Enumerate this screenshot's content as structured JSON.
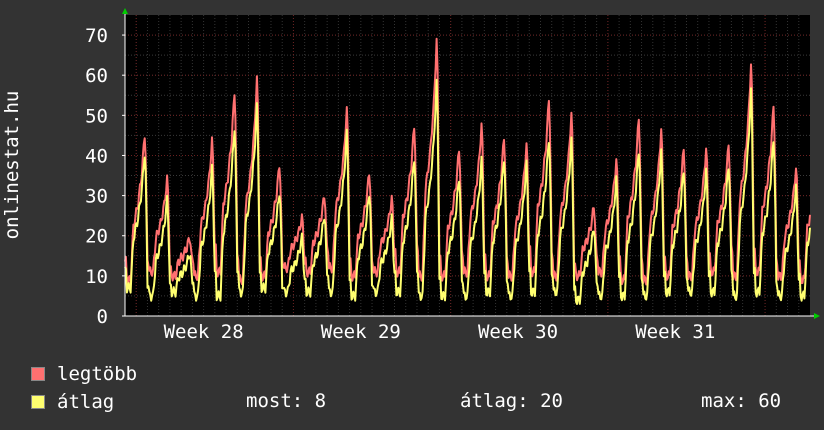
{
  "chart_data": {
    "type": "line",
    "ylabel": "onlinestat.hu",
    "ylim": [
      0,
      75
    ],
    "y_ticks": [
      0,
      10,
      20,
      30,
      40,
      50,
      60,
      70
    ],
    "x_ticks": [
      {
        "label": "Week 28",
        "day": 3.5
      },
      {
        "label": "Week 29",
        "day": 10.5
      },
      {
        "label": "Week 30",
        "day": 17.5
      },
      {
        "label": "Week 31",
        "day": 24.5
      }
    ],
    "x_range_days": [
      0,
      30.5
    ],
    "grid": true,
    "series": [
      {
        "name": "legtöbb",
        "color": "#ff7070",
        "daily_min": [
          9,
          11,
          10,
          10,
          11,
          9,
          10,
          12,
          11,
          12,
          10,
          11,
          11,
          10,
          10,
          11,
          10,
          10,
          11,
          10,
          10,
          11,
          9,
          9,
          10,
          10,
          11,
          10,
          11,
          10,
          9
        ],
        "daily_max": [
          47,
          35,
          20,
          45,
          58,
          61,
          39,
          25,
          31,
          53,
          37,
          30,
          49,
          71,
          43,
          49,
          46,
          44,
          56,
          52,
          28,
          40,
          51,
          48,
          43,
          43,
          44,
          65,
          54,
          38,
          45
        ]
      },
      {
        "name": "átlag",
        "color": "#ffff70",
        "daily_min": [
          7,
          5,
          6,
          5,
          5,
          6,
          7,
          6,
          6,
          6,
          5,
          6,
          6,
          5,
          5,
          5,
          6,
          5,
          6,
          6,
          4,
          5,
          5,
          5,
          6,
          6,
          6,
          5,
          6,
          5,
          5
        ],
        "daily_max": [
          42,
          30,
          16,
          38,
          49,
          54,
          32,
          20,
          26,
          47,
          32,
          25,
          41,
          60,
          36,
          40,
          41,
          39,
          46,
          45,
          23,
          35,
          43,
          42,
          38,
          37,
          39,
          58,
          46,
          33,
          41
        ]
      }
    ]
  },
  "legend": [
    {
      "label": "legtöbb",
      "color": "#ff7070"
    },
    {
      "label": "átlag",
      "color": "#ffff70"
    }
  ],
  "stats": {
    "now": "most: 8",
    "avg": "átlag: 20",
    "max": "max: 60"
  }
}
